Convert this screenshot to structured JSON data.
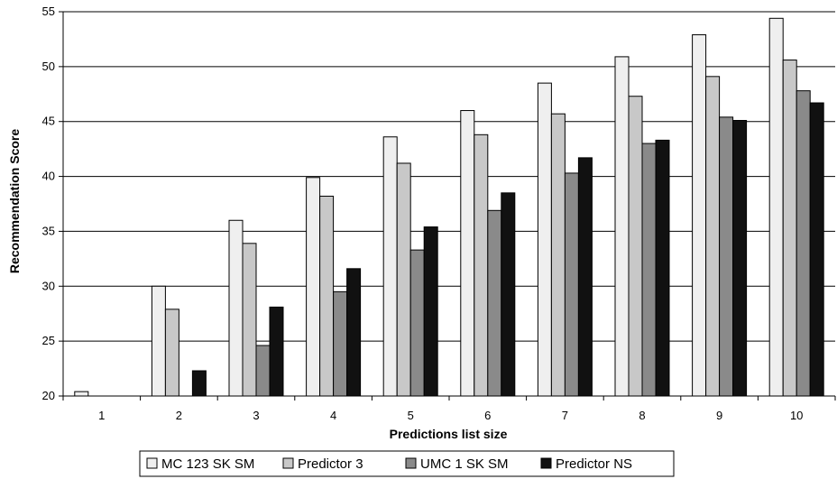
{
  "chart_data": {
    "type": "bar",
    "title": "",
    "xlabel": "Predictions list size",
    "ylabel": "Recommendation Score",
    "ylim": [
      20,
      55
    ],
    "yticks": [
      20,
      25,
      30,
      35,
      40,
      45,
      50,
      55
    ],
    "categories": [
      "1",
      "2",
      "3",
      "4",
      "5",
      "6",
      "7",
      "8",
      "9",
      "10"
    ],
    "grid": "horizontal",
    "legend_position": "bottom",
    "series": [
      {
        "name": "MC 123 SK SM",
        "color": "#efefef",
        "values": [
          20.4,
          30.0,
          36.0,
          39.9,
          43.6,
          46.0,
          48.5,
          50.9,
          52.9,
          54.4
        ]
      },
      {
        "name": "Predictor  3",
        "color": "#c8c8c8",
        "values": [
          null,
          27.9,
          33.9,
          38.2,
          41.2,
          43.8,
          45.7,
          47.3,
          49.1,
          50.6
        ]
      },
      {
        "name": "UMC 1 SK SM",
        "color": "#8a8a8a",
        "values": [
          null,
          null,
          24.6,
          29.5,
          33.3,
          36.9,
          40.3,
          43.0,
          45.4,
          47.8
        ]
      },
      {
        "name": "Predictor NS",
        "color": "#111111",
        "values": [
          null,
          22.3,
          28.1,
          31.6,
          35.4,
          38.5,
          41.7,
          43.3,
          45.1,
          46.7
        ]
      }
    ]
  }
}
